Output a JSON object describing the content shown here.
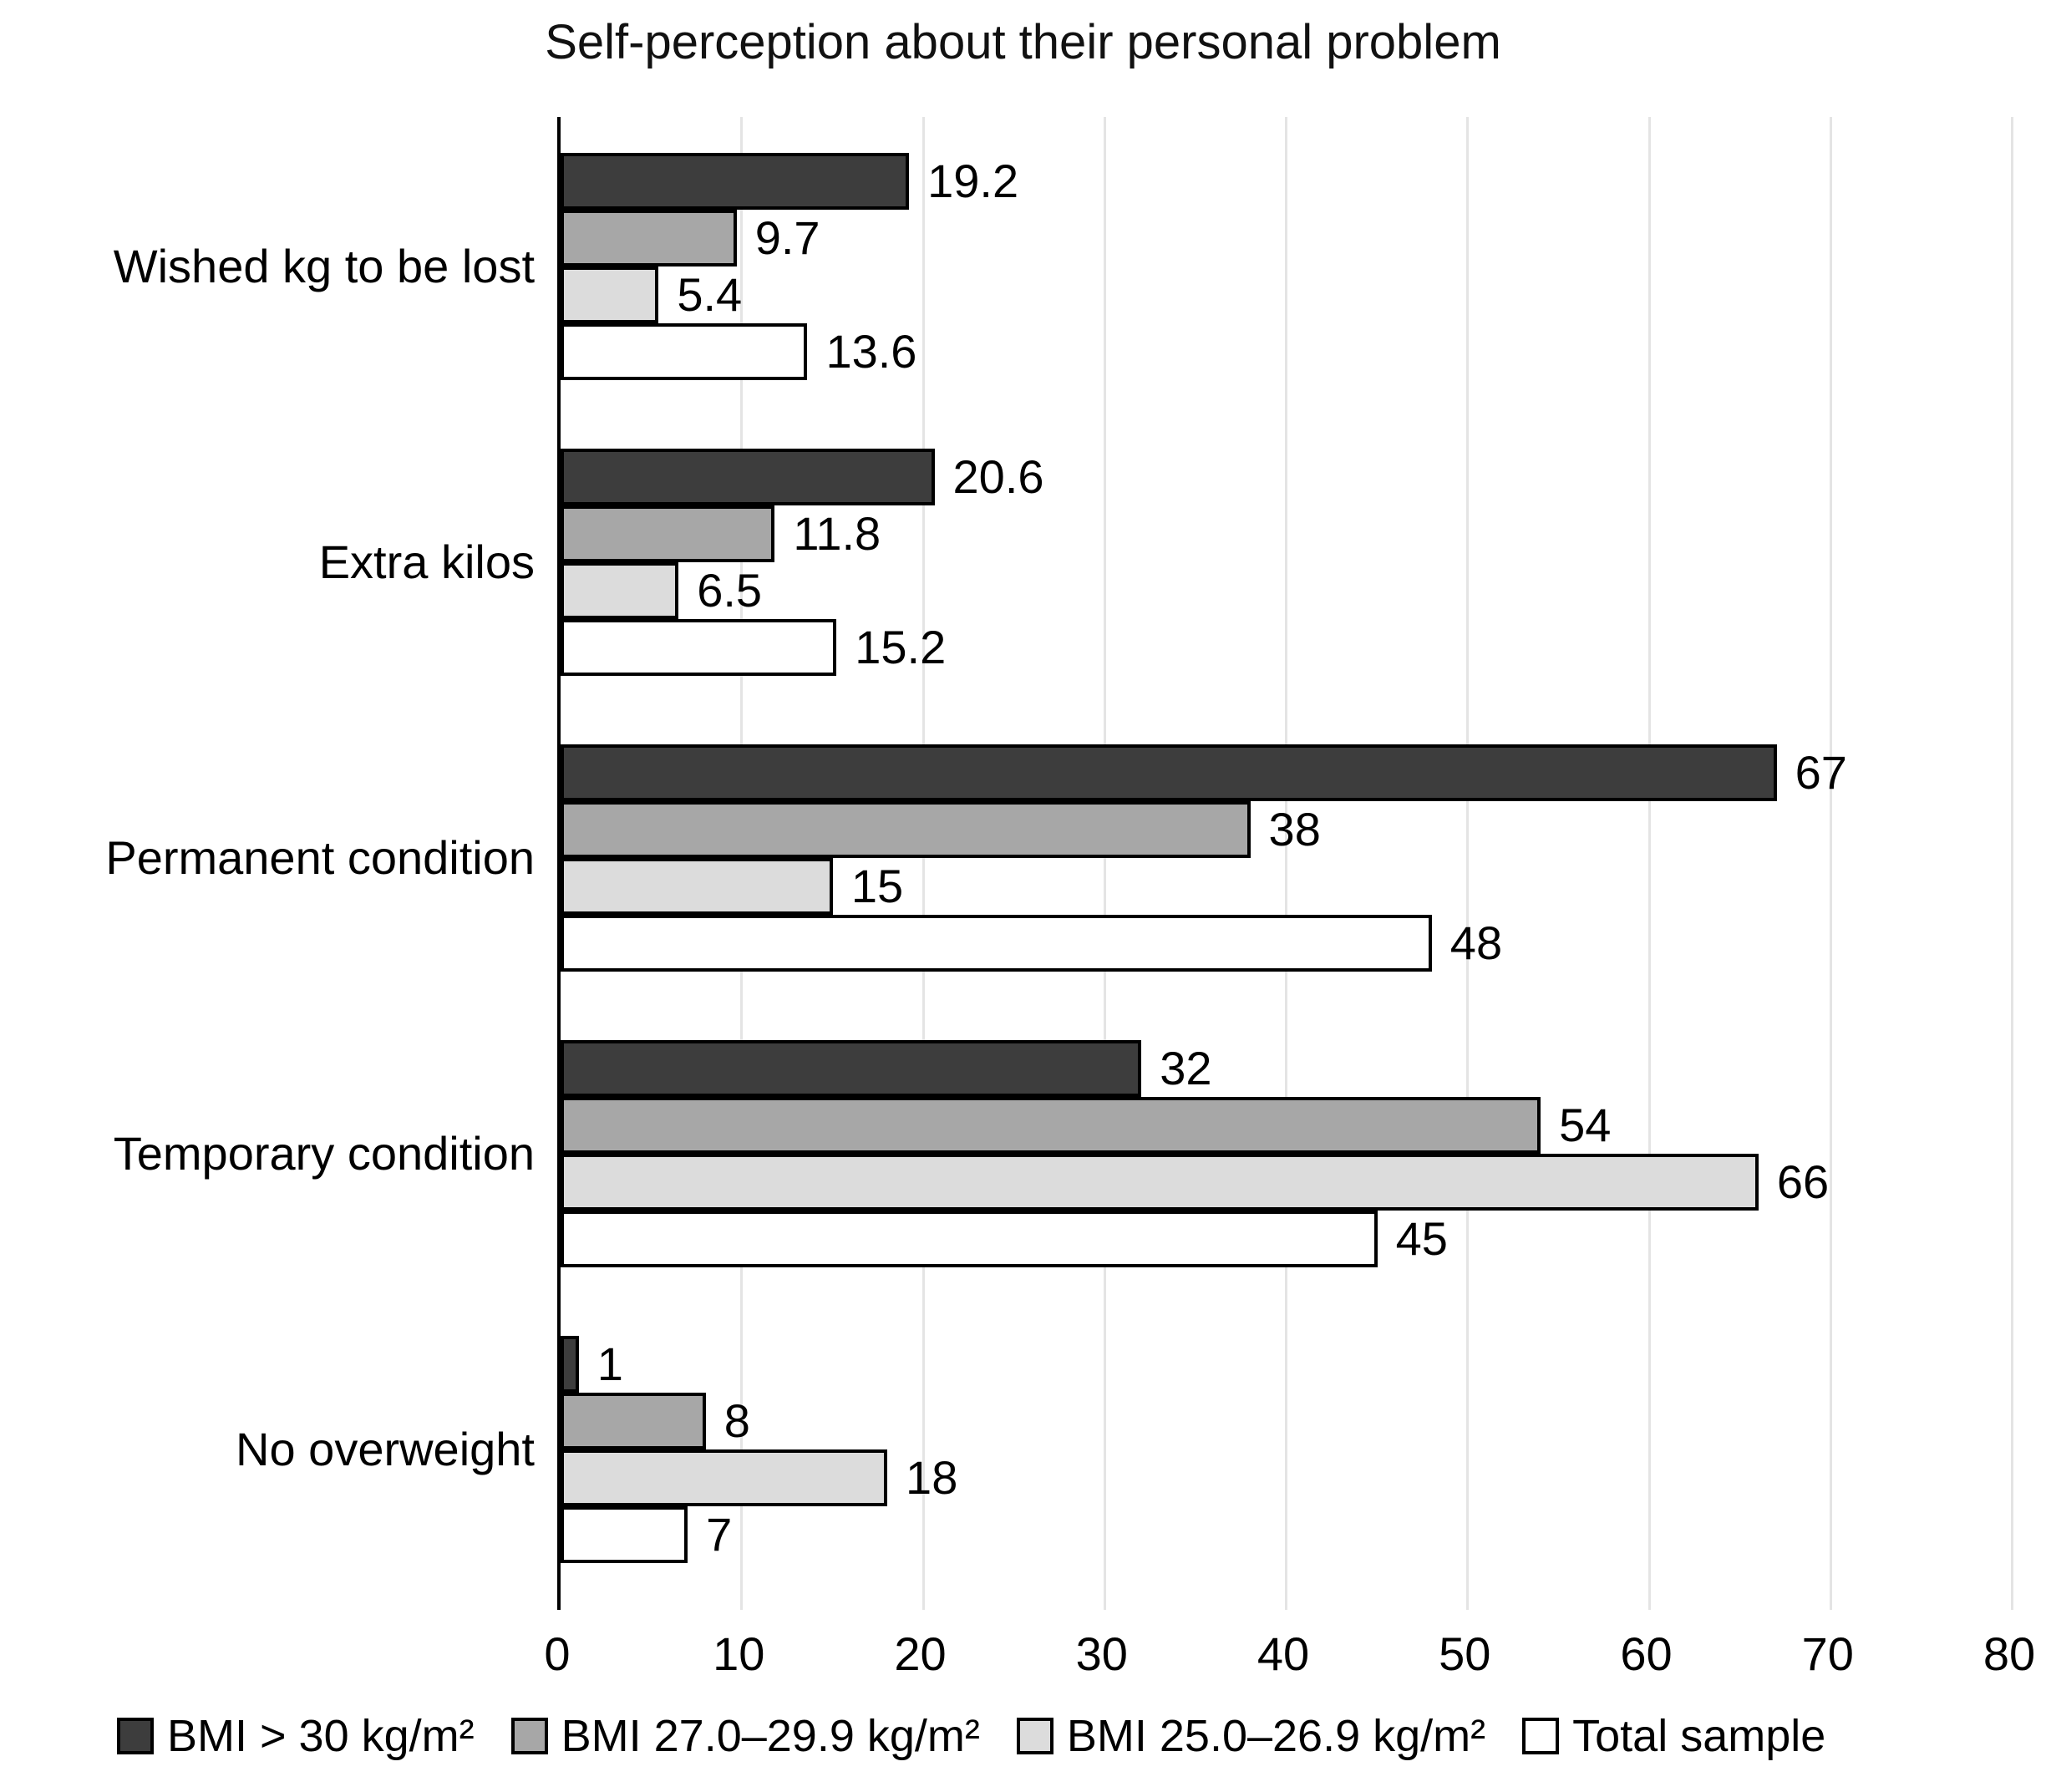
{
  "chart_data": {
    "type": "bar",
    "orientation": "horizontal",
    "title": "Self-perception about their personal problem",
    "categories": [
      "Wished kg to be lost",
      "Extra kilos",
      "Permanent condition",
      "Temporary condition",
      "No overweight"
    ],
    "series": [
      {
        "name": "BMI > 30 kg/m²",
        "color": "#3d3d3d",
        "values": [
          19.2,
          20.6,
          67,
          32,
          1
        ]
      },
      {
        "name": "BMI 27.0–29.9 kg/m²",
        "color": "#a7a7a7",
        "values": [
          9.7,
          11.8,
          38,
          54,
          8
        ]
      },
      {
        "name": "BMI 25.0–26.9 kg/m²",
        "color": "#dcdcdc",
        "values": [
          5.4,
          6.5,
          15,
          66,
          18
        ]
      },
      {
        "name": "Total sample",
        "color": "#ffffff",
        "values": [
          13.6,
          15.2,
          48,
          45,
          7
        ]
      }
    ],
    "xlabel": "",
    "ylabel": "",
    "xlim": [
      0,
      80
    ],
    "x_ticks": [
      0,
      10,
      20,
      30,
      40,
      50,
      60,
      70,
      80
    ],
    "grid": true,
    "gridline_color": "#e4e4e4",
    "axis_color": "#000000",
    "bar_border_color": "#000000",
    "text_color": "#000000",
    "background_color": "#ffffff",
    "legend_position": "bottom",
    "value_labels_shown": true
  }
}
